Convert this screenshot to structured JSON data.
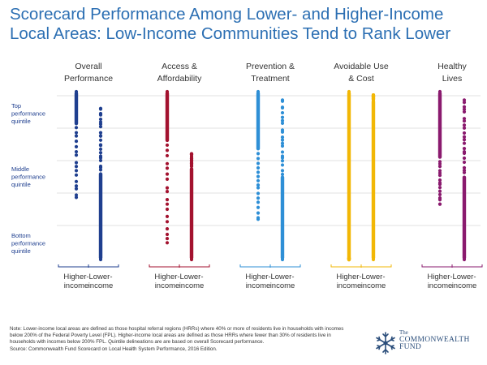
{
  "title": {
    "line1": "Scorecard Performance Among Lower- and Higher-Income",
    "line2": "Local Areas: Low-Income Communities Tend to Rank Lower"
  },
  "chart_data": {
    "type": "scatter",
    "title": "Scorecard Performance Among Lower- and Higher-Income Local Areas: Low-Income Communities Tend to Rank Lower",
    "y_axis": {
      "labels": [
        [
          "Top",
          "performance",
          "quintile"
        ],
        [
          "Middle",
          "performance",
          "quintile"
        ],
        [
          "Bottom",
          "performance",
          "quintile"
        ]
      ],
      "direction": "top-best"
    },
    "series_labels": [
      "Higher-income",
      "Lower-income"
    ],
    "groups": [
      {
        "name": [
          "Overall",
          "Performance"
        ],
        "color": "#1f3f8f",
        "higher": {
          "min": 0.0,
          "max": 0.63,
          "dense_to": 0.2,
          "count": 55
        },
        "lower": {
          "min": 0.1,
          "max": 1.0,
          "dense_from": 0.48,
          "count": 75
        }
      },
      {
        "name": [
          "Access &",
          "Affordability"
        ],
        "color": "#a3122f",
        "higher": {
          "min": 0.0,
          "max": 0.9,
          "dense_to": 0.3,
          "count": 60
        },
        "lower": {
          "min": 0.37,
          "max": 1.0,
          "dense_from": 0.45,
          "count": 70
        }
      },
      {
        "name": [
          "Prevention &",
          "Treatment"
        ],
        "color": "#2e8fd6",
        "higher": {
          "min": 0.0,
          "max": 0.76,
          "dense_to": 0.35,
          "count": 55
        },
        "lower": {
          "min": 0.05,
          "max": 1.0,
          "dense_from": 0.5,
          "count": 70
        }
      },
      {
        "name": [
          "Avoidable Use",
          "& Cost"
        ],
        "color": "#f2b705",
        "higher": {
          "min": 0.0,
          "max": 1.0,
          "dense_to": 1.0,
          "count": 100
        },
        "lower": {
          "min": 0.02,
          "max": 1.0,
          "dense_from": 0.05,
          "count": 95
        }
      },
      {
        "name": [
          "Healthy",
          "Lives"
        ],
        "color": "#8a1a6e",
        "higher": {
          "min": 0.0,
          "max": 0.67,
          "dense_to": 0.4,
          "count": 55
        },
        "lower": {
          "min": 0.05,
          "max": 1.0,
          "dense_from": 0.5,
          "count": 70
        }
      }
    ],
    "grid": true
  },
  "note": {
    "text": "Note: Lower-income local areas are defined as those hospital referral regions (HRRs) where 40% or more of residents live in households with incomes below 200% of the Federal Poverty Level (FPL). Higher-income local areas are defined as those HRRs where fewer than 30% of residents live in households with incomes below 200% FPL. Quintile delineations are are based on overall Scorecard performance.",
    "source": "Source: Commonwealth Fund Scorecard on Local Health System Performance, 2016 Edition."
  },
  "logo": {
    "the": "The",
    "line1": "COMMONWEALTH",
    "line2": "FUND"
  },
  "colors": {
    "title": "#2c6fb3",
    "grid": "#d9d9d9",
    "axis_label": "#1f3f8f"
  }
}
